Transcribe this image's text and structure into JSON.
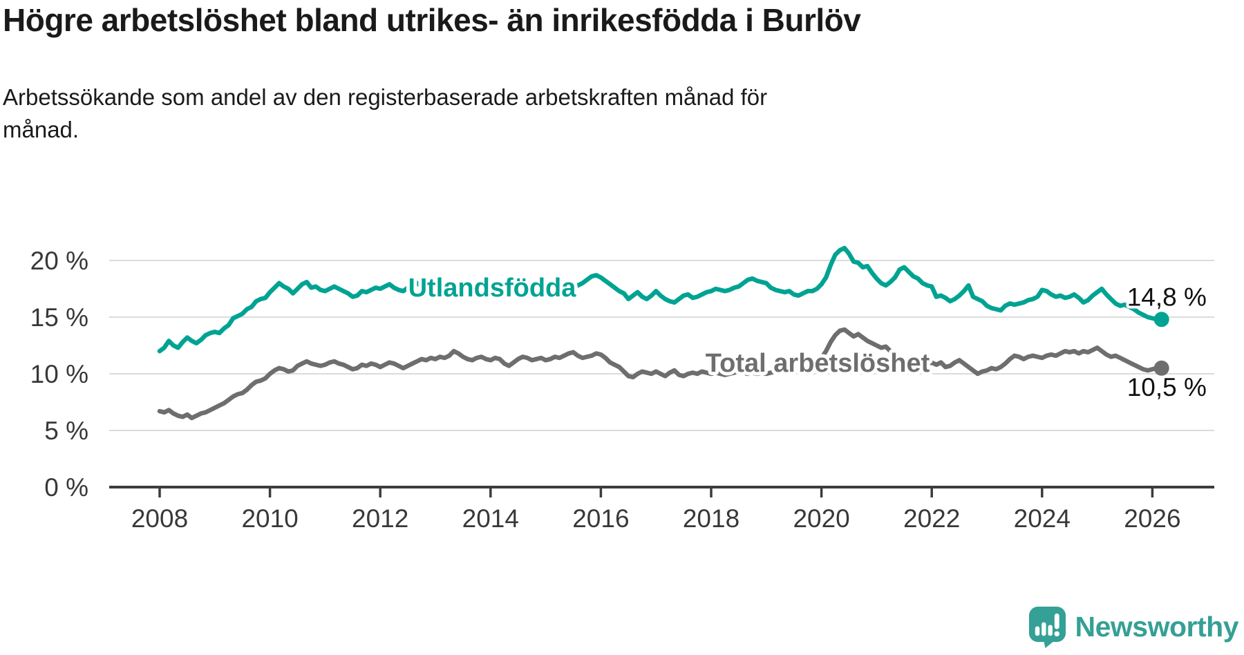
{
  "title": "Högre arbetslöshet bland utrikes- än inrikesfödda i Burlöv",
  "subtitle_lines": [
    "Arbetssökande som andel av den registerbaserade arbetskraften månad för",
    "månad."
  ],
  "branding": {
    "name": "Newsworthy",
    "color": "#35a095"
  },
  "chart_data": {
    "type": "line",
    "title": "Högre arbetslöshet bland utrikes- än inrikesfödda i Burlöv",
    "subtitle": "Arbetssökande som andel av den registerbaserade arbetskraften månad för månad.",
    "unit": "%",
    "x_start_year": 2008,
    "x_interval": "monthly",
    "xlim": [
      2007.1,
      2027.2
    ],
    "ylim": [
      0,
      22
    ],
    "grid": "horizontal",
    "legend_position": "inline-labels",
    "x_ticks": [
      2008,
      2010,
      2012,
      2014,
      2016,
      2018,
      2020,
      2022,
      2024,
      2026
    ],
    "y_ticks": [
      {
        "value": 0,
        "label": "0 %"
      },
      {
        "value": 5,
        "label": "5 %"
      },
      {
        "value": 10,
        "label": "10 %"
      },
      {
        "value": 15,
        "label": "15 %"
      },
      {
        "value": 20,
        "label": "20 %"
      }
    ],
    "series": [
      {
        "name": "Utlandsfödda",
        "color": "#00a392",
        "end_label": "14,8 %",
        "end_value": 14.8,
        "values": [
          12.0,
          12.3,
          12.9,
          12.5,
          12.3,
          12.8,
          13.2,
          12.9,
          12.7,
          13.0,
          13.4,
          13.6,
          13.7,
          13.6,
          14.0,
          14.3,
          14.9,
          15.1,
          15.3,
          15.7,
          15.9,
          16.4,
          16.6,
          16.7,
          17.2,
          17.6,
          18.0,
          17.7,
          17.5,
          17.1,
          17.5,
          17.9,
          18.1,
          17.6,
          17.7,
          17.4,
          17.3,
          17.5,
          17.7,
          17.5,
          17.3,
          17.1,
          16.8,
          16.9,
          17.3,
          17.2,
          17.4,
          17.6,
          17.5,
          17.7,
          17.9,
          17.6,
          17.4,
          17.3,
          17.6,
          17.8,
          18.0,
          17.7,
          17.5,
          17.4,
          17.3,
          17.5,
          17.7,
          17.9,
          18.1,
          17.8,
          17.6,
          17.4,
          17.5,
          17.3,
          17.2,
          17.4,
          17.5,
          17.3,
          17.2,
          17.4,
          17.6,
          17.5,
          17.3,
          17.2,
          17.4,
          17.6,
          17.5,
          17.7,
          17.6,
          17.9,
          17.8,
          17.6,
          17.5,
          17.7,
          17.6,
          17.8,
          18.0,
          18.3,
          18.6,
          18.7,
          18.5,
          18.2,
          17.9,
          17.6,
          17.3,
          17.1,
          16.6,
          16.9,
          17.2,
          16.8,
          16.6,
          16.9,
          17.3,
          16.9,
          16.6,
          16.4,
          16.3,
          16.6,
          16.9,
          17.0,
          16.7,
          16.8,
          17.0,
          17.2,
          17.3,
          17.5,
          17.4,
          17.3,
          17.4,
          17.6,
          17.7,
          18.0,
          18.3,
          18.4,
          18.2,
          18.1,
          18.0,
          17.6,
          17.4,
          17.3,
          17.2,
          17.3,
          17.0,
          16.9,
          17.1,
          17.3,
          17.3,
          17.5,
          17.9,
          18.5,
          19.6,
          20.5,
          20.9,
          21.1,
          20.6,
          19.9,
          19.8,
          19.4,
          19.5,
          18.9,
          18.4,
          18.0,
          17.8,
          18.1,
          18.5,
          19.2,
          19.4,
          19.0,
          18.6,
          18.4,
          18.0,
          17.8,
          17.7,
          16.8,
          16.9,
          16.7,
          16.4,
          16.6,
          16.9,
          17.3,
          17.8,
          16.8,
          16.6,
          16.4,
          16.0,
          15.8,
          15.7,
          15.6,
          16.0,
          16.2,
          16.1,
          16.2,
          16.3,
          16.5,
          16.6,
          16.8,
          17.4,
          17.3,
          17.0,
          16.8,
          16.9,
          16.7,
          16.8,
          17.0,
          16.7,
          16.3,
          16.5,
          16.9,
          17.2,
          17.5,
          17.0,
          16.6,
          16.2,
          16.0,
          16.1,
          15.9,
          15.7,
          15.4,
          15.2,
          15.0,
          14.9,
          14.8,
          14.8
        ]
      },
      {
        "name": "Total arbetslöshet",
        "color": "#6e6e6e",
        "end_label": "10,5 %",
        "end_value": 10.5,
        "values": [
          6.7,
          6.6,
          6.8,
          6.5,
          6.3,
          6.2,
          6.4,
          6.1,
          6.3,
          6.5,
          6.6,
          6.8,
          7.0,
          7.2,
          7.4,
          7.7,
          8.0,
          8.2,
          8.3,
          8.6,
          9.0,
          9.3,
          9.4,
          9.6,
          10.0,
          10.3,
          10.5,
          10.4,
          10.2,
          10.3,
          10.7,
          10.9,
          11.1,
          10.9,
          10.8,
          10.7,
          10.8,
          11.0,
          11.1,
          10.9,
          10.8,
          10.6,
          10.4,
          10.5,
          10.8,
          10.7,
          10.9,
          10.8,
          10.6,
          10.8,
          11.0,
          10.9,
          10.7,
          10.5,
          10.7,
          10.9,
          11.1,
          11.3,
          11.2,
          11.4,
          11.3,
          11.5,
          11.4,
          11.6,
          12.0,
          11.8,
          11.5,
          11.3,
          11.2,
          11.4,
          11.5,
          11.3,
          11.2,
          11.4,
          11.3,
          10.9,
          10.7,
          11.0,
          11.3,
          11.5,
          11.4,
          11.2,
          11.3,
          11.4,
          11.2,
          11.3,
          11.5,
          11.4,
          11.6,
          11.8,
          11.9,
          11.6,
          11.4,
          11.5,
          11.6,
          11.8,
          11.7,
          11.4,
          11.0,
          10.8,
          10.6,
          10.2,
          9.8,
          9.7,
          10.0,
          10.2,
          10.1,
          10.0,
          10.2,
          10.0,
          9.8,
          10.1,
          10.3,
          9.9,
          9.8,
          10.0,
          10.1,
          10.0,
          10.2,
          10.1,
          10.0,
          10.1,
          10.0,
          9.9,
          10.0,
          10.1,
          10.2,
          10.1,
          10.0,
          10.1,
          10.0,
          10.1,
          10.0,
          10.1,
          10.2,
          10.1,
          10.2,
          10.3,
          10.2,
          10.3,
          10.4,
          10.5,
          10.6,
          10.9,
          11.4,
          12.0,
          12.8,
          13.4,
          13.8,
          13.9,
          13.6,
          13.3,
          13.5,
          13.2,
          12.9,
          12.7,
          12.5,
          12.3,
          12.4,
          12.0,
          11.7,
          11.5,
          11.3,
          11.1,
          11.0,
          11.1,
          11.0,
          10.9,
          11.0,
          10.8,
          11.0,
          10.6,
          10.7,
          11.0,
          11.2,
          10.9,
          10.6,
          10.3,
          10.0,
          10.2,
          10.3,
          10.5,
          10.4,
          10.6,
          10.9,
          11.3,
          11.6,
          11.5,
          11.3,
          11.5,
          11.6,
          11.5,
          11.4,
          11.6,
          11.7,
          11.6,
          11.8,
          12.0,
          11.9,
          12.0,
          11.8,
          12.0,
          11.9,
          12.1,
          12.3,
          12.0,
          11.7,
          11.5,
          11.6,
          11.4,
          11.2,
          11.0,
          10.8,
          10.6,
          10.4,
          10.3,
          10.4,
          10.5,
          10.5
        ]
      }
    ]
  }
}
